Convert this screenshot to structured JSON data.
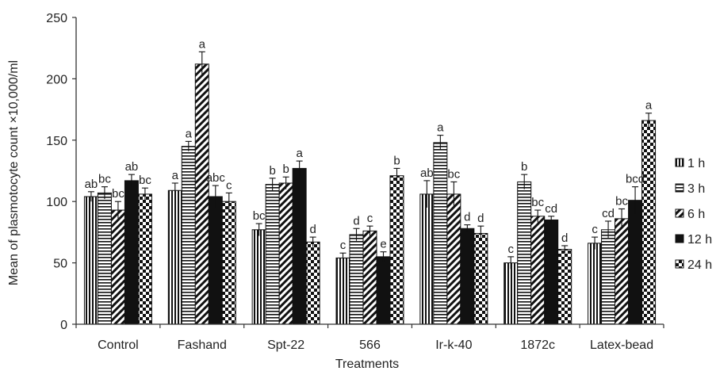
{
  "chart_data": {
    "type": "bar",
    "xlabel": "Treatments",
    "ylabel": "Mean of plasmotocyte count ×10,000/ml",
    "ylim": [
      0,
      250
    ],
    "yticks": [
      0,
      50,
      100,
      150,
      200,
      250
    ],
    "legend_position": "right",
    "grid": false,
    "categories": [
      "Control",
      "Fashand",
      "Spt-22",
      "566",
      "Ir-k-40",
      "1872c",
      "Latex-bead"
    ],
    "series": [
      {
        "name": "1 h",
        "pattern": "vertical-lines",
        "values": [
          104,
          109,
          77,
          54,
          106,
          50,
          66
        ],
        "errors": [
          4,
          6,
          5,
          4,
          11,
          5,
          5
        ],
        "labels": [
          "ab",
          "a",
          "bc",
          "c",
          "ab",
          "c",
          "c"
        ]
      },
      {
        "name": "3 h",
        "pattern": "horizontal-lines",
        "values": [
          107,
          145,
          114,
          73,
          148,
          116,
          77
        ],
        "errors": [
          5,
          4,
          5,
          5,
          6,
          6,
          7
        ],
        "labels": [
          "bc",
          "a",
          "b",
          "d",
          "a",
          "b",
          "cd"
        ]
      },
      {
        "name": "6 h",
        "pattern": "diagonal-lines",
        "values": [
          93,
          212,
          115,
          76,
          106,
          88,
          86
        ],
        "errors": [
          7,
          10,
          5,
          4,
          10,
          5,
          8
        ],
        "labels": [
          "bc",
          "a",
          "b",
          "c",
          "bc",
          "bc",
          "bc"
        ]
      },
      {
        "name": "12 h",
        "pattern": "solid-black",
        "values": [
          117,
          104,
          127,
          55,
          78,
          85,
          101
        ],
        "errors": [
          5,
          9,
          6,
          4,
          3,
          3,
          11
        ],
        "labels": [
          "ab",
          "abc",
          "a",
          "e",
          "d",
          "cd",
          "bcd"
        ]
      },
      {
        "name": "24 h",
        "pattern": "checkerboard",
        "values": [
          106,
          100,
          67,
          121,
          74,
          61,
          166
        ],
        "errors": [
          5,
          7,
          4,
          6,
          6,
          3,
          6
        ],
        "labels": [
          "bc",
          "c",
          "d",
          "b",
          "d",
          "d",
          "a"
        ]
      }
    ]
  }
}
